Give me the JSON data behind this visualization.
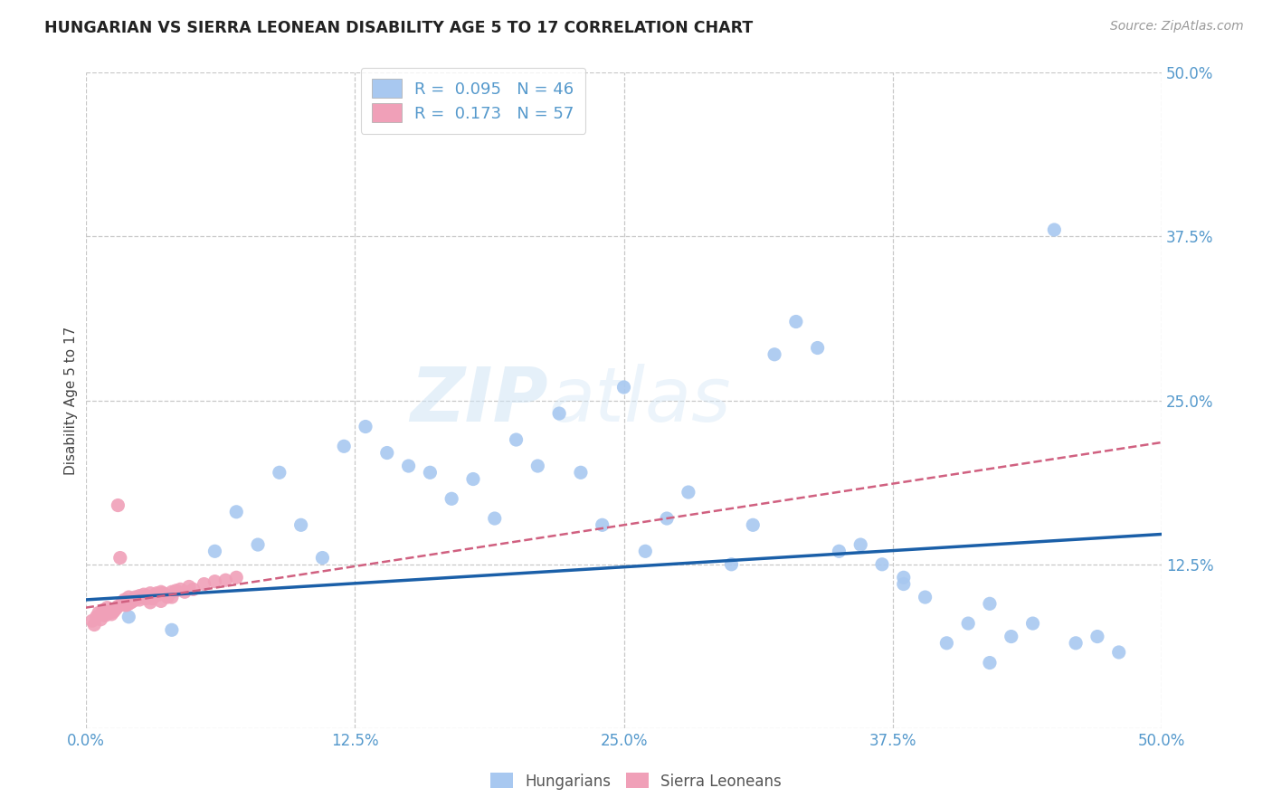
{
  "title": "HUNGARIAN VS SIERRA LEONEAN DISABILITY AGE 5 TO 17 CORRELATION CHART",
  "source_text": "Source: ZipAtlas.com",
  "ylabel": "Disability Age 5 to 17",
  "xlim": [
    0.0,
    0.5
  ],
  "ylim": [
    0.0,
    0.5
  ],
  "grid_color": "#c8c8c8",
  "background_color": "#ffffff",
  "watermark_text": "ZIPatlas",
  "legend_r1": "0.095",
  "legend_n1": "46",
  "legend_r2": "0.173",
  "legend_n2": "57",
  "blue_color": "#a8c8f0",
  "pink_color": "#f0a0b8",
  "blue_line_color": "#1a5fa8",
  "pink_line_color": "#d06080",
  "tick_label_color": "#5599cc",
  "title_color": "#222222",
  "blue_line_y0": 0.098,
  "blue_line_y1": 0.148,
  "pink_line_y0": 0.092,
  "pink_line_y1": 0.218,
  "blue_scatter_x": [
    0.02,
    0.04,
    0.06,
    0.07,
    0.08,
    0.09,
    0.1,
    0.11,
    0.12,
    0.13,
    0.14,
    0.15,
    0.16,
    0.17,
    0.18,
    0.19,
    0.2,
    0.21,
    0.22,
    0.23,
    0.24,
    0.25,
    0.26,
    0.27,
    0.28,
    0.3,
    0.31,
    0.32,
    0.33,
    0.34,
    0.35,
    0.36,
    0.37,
    0.38,
    0.39,
    0.4,
    0.41,
    0.42,
    0.43,
    0.44,
    0.45,
    0.46,
    0.47,
    0.48,
    0.42,
    0.38
  ],
  "blue_scatter_y": [
    0.085,
    0.075,
    0.135,
    0.165,
    0.14,
    0.195,
    0.155,
    0.13,
    0.215,
    0.23,
    0.21,
    0.2,
    0.195,
    0.175,
    0.19,
    0.16,
    0.22,
    0.2,
    0.24,
    0.195,
    0.155,
    0.26,
    0.135,
    0.16,
    0.18,
    0.125,
    0.155,
    0.285,
    0.31,
    0.29,
    0.135,
    0.14,
    0.125,
    0.115,
    0.1,
    0.065,
    0.08,
    0.095,
    0.07,
    0.08,
    0.38,
    0.065,
    0.07,
    0.058,
    0.05,
    0.11
  ],
  "pink_scatter_x": [
    0.003,
    0.004,
    0.005,
    0.006,
    0.007,
    0.008,
    0.009,
    0.01,
    0.011,
    0.012,
    0.013,
    0.014,
    0.015,
    0.016,
    0.017,
    0.018,
    0.019,
    0.02,
    0.021,
    0.022,
    0.023,
    0.024,
    0.025,
    0.026,
    0.027,
    0.028,
    0.029,
    0.03,
    0.031,
    0.032,
    0.033,
    0.034,
    0.035,
    0.036,
    0.037,
    0.038,
    0.04,
    0.042,
    0.044,
    0.046,
    0.048,
    0.05,
    0.055,
    0.06,
    0.065,
    0.07,
    0.02,
    0.022,
    0.025,
    0.028,
    0.015,
    0.018,
    0.03,
    0.035,
    0.04,
    0.01,
    0.013
  ],
  "pink_scatter_y": [
    0.082,
    0.079,
    0.085,
    0.088,
    0.083,
    0.09,
    0.086,
    0.092,
    0.088,
    0.087,
    0.089,
    0.091,
    0.17,
    0.13,
    0.096,
    0.098,
    0.094,
    0.1,
    0.096,
    0.098,
    0.1,
    0.099,
    0.101,
    0.1,
    0.102,
    0.101,
    0.1,
    0.103,
    0.099,
    0.101,
    0.103,
    0.102,
    0.104,
    0.103,
    0.102,
    0.1,
    0.104,
    0.105,
    0.106,
    0.104,
    0.108,
    0.106,
    0.11,
    0.112,
    0.113,
    0.115,
    0.095,
    0.097,
    0.098,
    0.099,
    0.093,
    0.094,
    0.096,
    0.097,
    0.1,
    0.088,
    0.09
  ]
}
